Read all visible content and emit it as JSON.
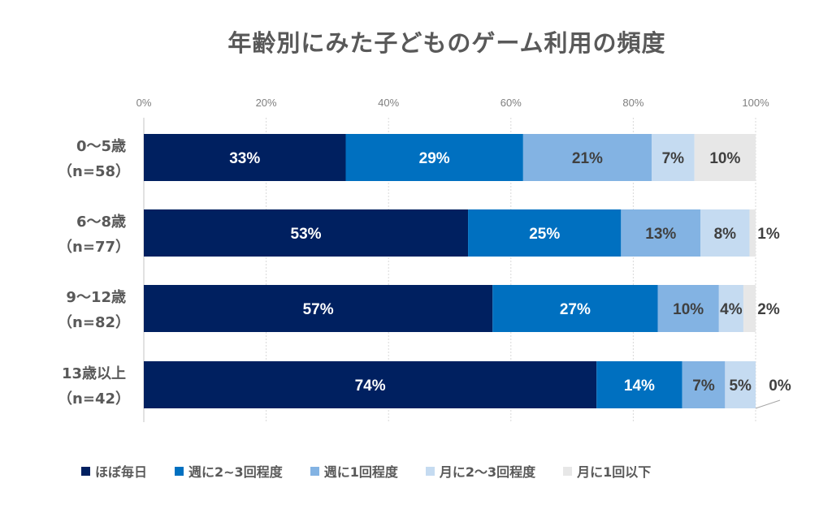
{
  "chart_data": {
    "type": "bar",
    "orientation": "horizontal",
    "stacked": true,
    "title": "年齢別にみた子どものゲーム利用の頻度",
    "xlabel": "",
    "ylabel": "",
    "xlim": [
      0,
      100
    ],
    "x_ticks": [
      "0%",
      "20%",
      "40%",
      "60%",
      "80%",
      "100%"
    ],
    "x_tick_values": [
      0,
      20,
      40,
      60,
      80,
      100
    ],
    "grid": true,
    "legend_position": "bottom",
    "categories": [
      {
        "line1": "0〜5歳",
        "line2": "（n=58）"
      },
      {
        "line1": "6〜8歳",
        "line2": "（n=77）"
      },
      {
        "line1": "9〜12歳",
        "line2": "（n=82）"
      },
      {
        "line1": "13歳以上",
        "line2": "（n=42）"
      }
    ],
    "series": [
      {
        "name": "ほぼ毎日",
        "color": "#002060",
        "label_color": "#ffffff",
        "values": [
          33,
          53,
          57,
          74
        ],
        "labels": [
          "33%",
          "53%",
          "57%",
          "74%"
        ]
      },
      {
        "name": "週に2~3回程度",
        "color": "#0070c0",
        "label_color": "#ffffff",
        "values": [
          29,
          25,
          27,
          14
        ],
        "labels": [
          "29%",
          "25%",
          "27%",
          "14%"
        ]
      },
      {
        "name": "週に1回程度",
        "color": "#83b3e3",
        "label_color": "#404040",
        "values": [
          21,
          13,
          10,
          7
        ],
        "labels": [
          "21%",
          "13%",
          "10%",
          "7%"
        ]
      },
      {
        "name": "月に2〜3回程度",
        "color": "#c5dbf1",
        "label_color": "#404040",
        "values": [
          7,
          8,
          4,
          5
        ],
        "labels": [
          "7%",
          "8%",
          "4%",
          "5%"
        ]
      },
      {
        "name": "月に1回以下",
        "color": "#e7e7e7",
        "label_color": "#404040",
        "values": [
          10,
          1,
          2,
          0
        ],
        "labels": [
          "10%",
          "1%",
          "2%",
          "0%"
        ]
      }
    ]
  }
}
